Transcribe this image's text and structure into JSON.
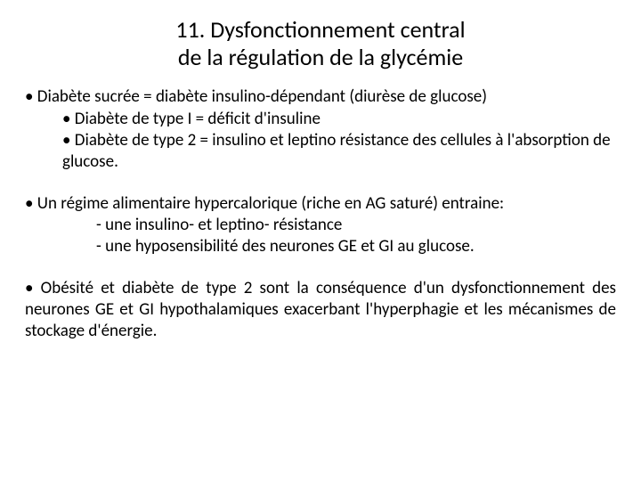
{
  "title_line1": "11. Dysfonctionnement central",
  "title_line2": "de la régulation de la glycémie",
  "p1_l1": "Diabète sucrée = diabète insulino-dépendant (diurèse de glucose)",
  "p1_l2": "Diabète de type I = déficit d'insuline",
  "p1_l3": "Diabète de type 2 = insulino et leptino résistance des cellules à l'absorption de glucose.",
  "p2_l1": "Un régime alimentaire hypercalorique (riche en AG saturé) entraine:",
  "p2_l2": "- une insulino- et leptino- résistance",
  "p2_l3": "- une hyposensibilité des neurones GE et GI au glucose.",
  "p3_l1": "Obésité et diabète de type 2 sont la conséquence d'un dysfonctionnement des neurones GE et GI hypothalamiques exacerbant l'hyperphagie et les mécanismes de stockage d'énergie."
}
